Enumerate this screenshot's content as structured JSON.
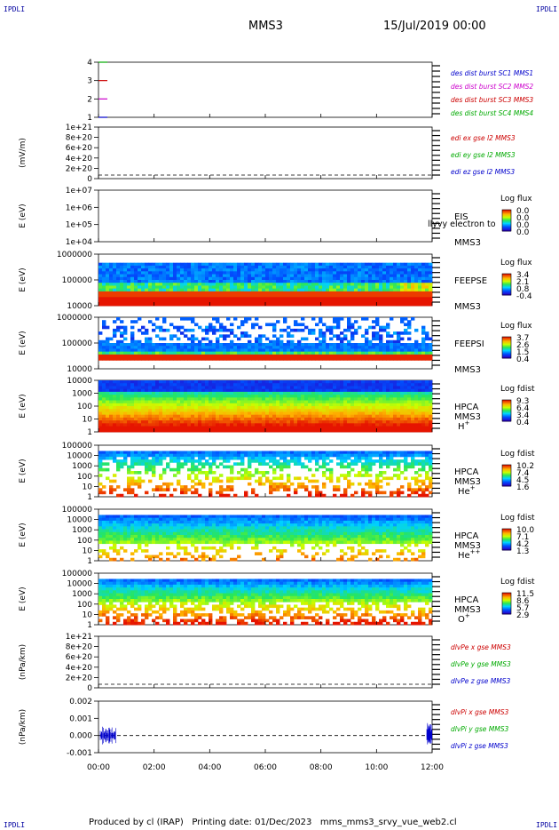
{
  "header": {
    "corner_tl": "IPDLI",
    "corner_tr": "IPDLI",
    "corner_bl": "IPDLI",
    "corner_br": "IPDLI",
    "spacecraft": "MMS3",
    "date_time": "15/Jul/2019 00:00"
  },
  "footer": {
    "produced_by": "Produced by cl (IRAP)",
    "printing_date": "Printing date: 01/Dec/2023",
    "file_name": "mms_mms3_srvy_vue_web2.cl"
  },
  "x_axis": {
    "ticks": [
      "00:00",
      "02:00",
      "04:00",
      "06:00",
      "08:00",
      "10:00",
      "12:00"
    ],
    "range_hours": [
      0,
      12
    ]
  },
  "chart_data": [
    {
      "id": "p1",
      "type": "line",
      "yticks": [
        "4",
        "3",
        "2",
        "1"
      ],
      "legend": [
        {
          "text": "des dist burst SC1 MMS1",
          "color": "#0000cc"
        },
        {
          "text": "des dist burst SC2 MMS2",
          "color": "#cc00cc"
        },
        {
          "text": "des dist burst SC3 MMS3",
          "color": "#cc0000"
        },
        {
          "text": "des dist burst SC4 MMS4",
          "color": "#00aa00"
        }
      ],
      "marks": [
        {
          "y": 4,
          "color": "#00aa00"
        },
        {
          "y": 3,
          "color": "#cc0000"
        },
        {
          "y": 2,
          "color": "#cc00cc"
        },
        {
          "y": 1,
          "color": "#0000cc"
        }
      ]
    },
    {
      "id": "p2",
      "type": "line",
      "ylabel": "(mV/m)",
      "yticks": [
        "1e+21",
        "8e+20",
        "6e+20",
        "4e+20",
        "2e+20",
        "0"
      ],
      "legend": [
        {
          "text": "edi ex gse l2 MMS3",
          "color": "#cc0000"
        },
        {
          "text": "edi ey gse l2 MMS3",
          "color": "#00aa00"
        },
        {
          "text": "edi ez gse l2 MMS3",
          "color": "#0000cc"
        }
      ]
    },
    {
      "id": "p3",
      "type": "heatmap",
      "ylabel": "E (eV)",
      "yticks": [
        "1e+07",
        "1e+06",
        "1e+05",
        "1e+04"
      ],
      "instrument": "EIS",
      "sc": "MMS3",
      "overlay_text": "llyvy electron to",
      "cb_title": "Log flux",
      "cb_values": [
        "0.0",
        "0.0",
        "0.0",
        "0.0"
      ]
    },
    {
      "id": "p4",
      "type": "heatmap",
      "ylabel": "E (eV)",
      "yticks": [
        "1000000",
        "100000",
        "10000"
      ],
      "instrument": "FEEPSE",
      "sc": "MMS3",
      "cb_title": "Log flux",
      "cb_values": [
        "3.4",
        "2.1",
        "0.8",
        "-0.4"
      ]
    },
    {
      "id": "p5",
      "type": "heatmap",
      "ylabel": "E (eV)",
      "yticks": [
        "1000000",
        "100000",
        "10000"
      ],
      "instrument": "FEEPSI",
      "sc": "MMS3",
      "cb_title": "Log flux",
      "cb_values": [
        "3.7",
        "2.6",
        "1.5",
        "0.4"
      ]
    },
    {
      "id": "p6",
      "type": "heatmap",
      "ylabel": "E (eV)",
      "yticks": [
        "10000",
        "1000",
        "100",
        "10",
        "1"
      ],
      "instrument": "HPCA",
      "sc": "MMS3",
      "species": "H",
      "charge": "+",
      "cb_title": "Log fdist",
      "cb_values": [
        "9.3",
        "6.4",
        "3.4",
        "0.4"
      ]
    },
    {
      "id": "p7",
      "type": "heatmap",
      "ylabel": "E (eV)",
      "yticks": [
        "100000",
        "10000",
        "1000",
        "100",
        "10",
        "1"
      ],
      "instrument": "HPCA",
      "sc": "MMS3",
      "species": "He",
      "charge": "+",
      "cb_title": "Log fdist",
      "cb_values": [
        "10.2",
        "7.4",
        "4.5",
        "1.6"
      ]
    },
    {
      "id": "p8",
      "type": "heatmap",
      "ylabel": "E (eV)",
      "yticks": [
        "100000",
        "10000",
        "1000",
        "100",
        "10",
        "1"
      ],
      "instrument": "HPCA",
      "sc": "MMS3",
      "species": "He",
      "charge": "++",
      "cb_title": "Log fdist",
      "cb_values": [
        "10.0",
        "7.1",
        "4.2",
        "1.3"
      ]
    },
    {
      "id": "p9",
      "type": "heatmap",
      "ylabel": "E (eV)",
      "yticks": [
        "100000",
        "10000",
        "1000",
        "100",
        "10",
        "1"
      ],
      "instrument": "HPCA",
      "sc": "MMS3",
      "species": "O",
      "charge": "+",
      "cb_title": "Log fdist",
      "cb_values": [
        "11.5",
        "8.6",
        "5.7",
        "2.9"
      ]
    },
    {
      "id": "p10",
      "type": "line",
      "ylabel": "(nPa/km)",
      "yticks": [
        "1e+21",
        "8e+20",
        "6e+20",
        "4e+20",
        "2e+20",
        "0"
      ],
      "legend": [
        {
          "text": "dlvPe x gse MMS3",
          "color": "#cc0000"
        },
        {
          "text": "dlvPe y gse MMS3",
          "color": "#00aa00"
        },
        {
          "text": "dlvPe z gse MMS3",
          "color": "#0000cc"
        }
      ]
    },
    {
      "id": "p11",
      "type": "line",
      "ylabel": "(nPa/km)",
      "yticks": [
        "0.002",
        "0.001",
        "0.000",
        "-0.001"
      ],
      "legend": [
        {
          "text": "dlvPi x gse MMS3",
          "color": "#cc0000"
        },
        {
          "text": "dlvPi y gse MMS3",
          "color": "#00aa00"
        },
        {
          "text": "dlvPi z gse MMS3",
          "color": "#0000cc"
        }
      ]
    }
  ]
}
